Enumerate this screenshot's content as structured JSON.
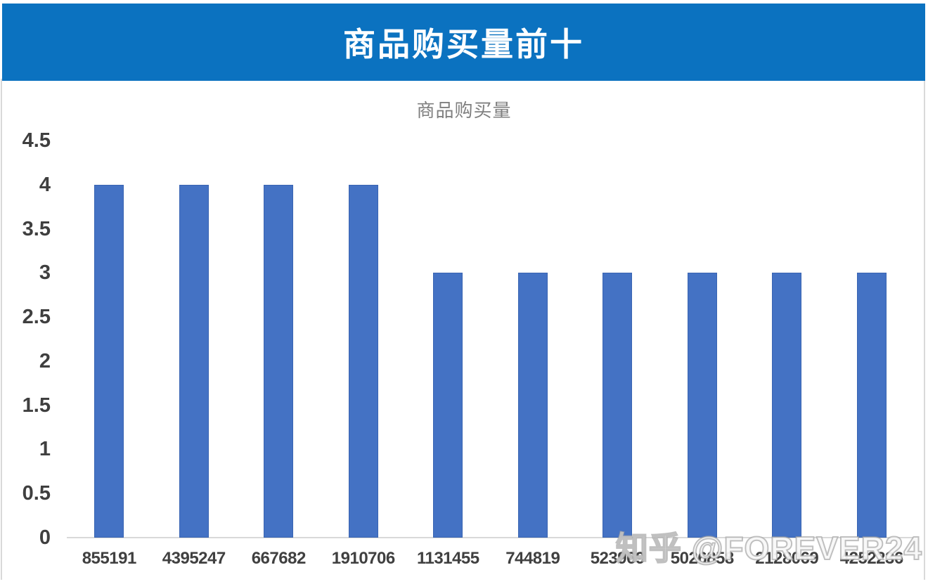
{
  "header": {
    "title": "商品购买量前十",
    "bg_color": "#0b72c0",
    "text_color": "#ffffff"
  },
  "watermark": {
    "text": "知乎 @FOREVER24"
  },
  "chart_data": {
    "type": "bar",
    "title": "商品购买量",
    "categories": [
      "855191",
      "4395247",
      "667682",
      "1910706",
      "1131455",
      "744819",
      "523969",
      "5026858",
      "2128069",
      "4252236"
    ],
    "values": [
      4,
      4,
      4,
      4,
      3,
      3,
      3,
      3,
      3,
      3
    ],
    "xlabel": "",
    "ylabel": "",
    "ylim": [
      0,
      4.5
    ],
    "yticks": [
      0,
      0.5,
      1,
      1.5,
      2,
      2.5,
      3,
      3.5,
      4,
      4.5
    ],
    "grid": false,
    "legend": "none",
    "bar_color": "#4472c4",
    "axis_line_color": "#d9d9d9",
    "tick_label_color": "#3f3f3f",
    "title_color": "#7f7f7f"
  }
}
